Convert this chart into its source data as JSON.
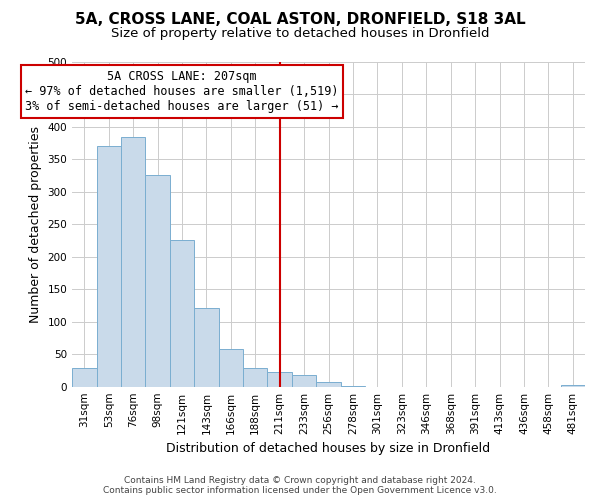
{
  "title": "5A, CROSS LANE, COAL ASTON, DRONFIELD, S18 3AL",
  "subtitle": "Size of property relative to detached houses in Dronfield",
  "xlabel": "Distribution of detached houses by size in Dronfield",
  "ylabel": "Number of detached properties",
  "bar_labels": [
    "31sqm",
    "53sqm",
    "76sqm",
    "98sqm",
    "121sqm",
    "143sqm",
    "166sqm",
    "188sqm",
    "211sqm",
    "233sqm",
    "256sqm",
    "278sqm",
    "301sqm",
    "323sqm",
    "346sqm",
    "368sqm",
    "391sqm",
    "413sqm",
    "436sqm",
    "458sqm",
    "481sqm"
  ],
  "bar_values": [
    28,
    370,
    384,
    325,
    226,
    121,
    58,
    28,
    22,
    18,
    7,
    1,
    0,
    0,
    0,
    0,
    0,
    0,
    0,
    0,
    3
  ],
  "bar_color": "#c9daea",
  "bar_edge_color": "#7aaed0",
  "vline_x_index": 8,
  "vline_color": "#cc0000",
  "annotation_line1": "5A CROSS LANE: 207sqm",
  "annotation_line2": "← 97% of detached houses are smaller (1,519)",
  "annotation_line3": "3% of semi-detached houses are larger (51) →",
  "annotation_box_color": "#ffffff",
  "annotation_box_edge_color": "#cc0000",
  "ylim": [
    0,
    500
  ],
  "yticks": [
    0,
    50,
    100,
    150,
    200,
    250,
    300,
    350,
    400,
    450,
    500
  ],
  "footer_line1": "Contains HM Land Registry data © Crown copyright and database right 2024.",
  "footer_line2": "Contains public sector information licensed under the Open Government Licence v3.0.",
  "title_fontsize": 11,
  "subtitle_fontsize": 9.5,
  "axis_label_fontsize": 9,
  "tick_fontsize": 7.5,
  "annotation_fontsize": 8.5,
  "footer_fontsize": 6.5,
  "background_color": "#ffffff",
  "grid_color": "#cccccc"
}
